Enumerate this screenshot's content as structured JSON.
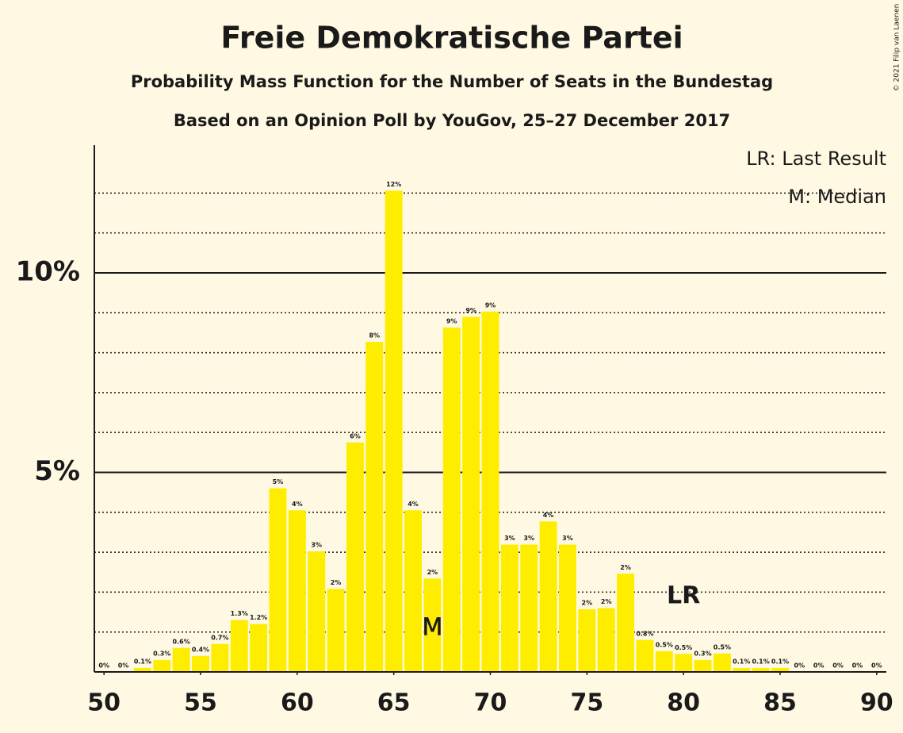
{
  "chart_data": {
    "type": "bar",
    "title": "Freie Demokratische Partei",
    "subtitle": "Probability Mass Function for the Number of Seats in the Bundestag",
    "subtitle2": "Based on an Opinion Poll by YouGov, 25–27 December 2017",
    "copyright": "© 2021 Filip van Laenen",
    "legend": [
      "LR: Last Result",
      "M: Median"
    ],
    "legend_position": "top-right",
    "color": "#ffed00",
    "x": [
      50,
      51,
      52,
      53,
      54,
      55,
      56,
      57,
      58,
      59,
      60,
      61,
      62,
      63,
      64,
      65,
      66,
      67,
      68,
      69,
      70,
      71,
      72,
      73,
      74,
      75,
      76,
      77,
      78,
      79,
      80,
      81,
      82,
      83,
      84,
      85,
      86,
      87,
      88,
      89,
      90
    ],
    "values": [
      0,
      0,
      0.1,
      0.3,
      0.6,
      0.4,
      0.7,
      1.3,
      1.2,
      4.6,
      4.05,
      3.02,
      2.08,
      5.75,
      8.27,
      12.06,
      4.05,
      2.34,
      8.63,
      8.9,
      9.03,
      3.19,
      3.19,
      3.77,
      3.19,
      1.57,
      1.6,
      2.46,
      0.8,
      0.52,
      0.45,
      0.3,
      0.46,
      0.1,
      0.1,
      0.1,
      0,
      0,
      0,
      0,
      0
    ],
    "value_labels": [
      "0%",
      "0%",
      "0.1%",
      "0.3%",
      "0.6%",
      "0.4%",
      "0.7%",
      "1.3%",
      "1.2%",
      "5%",
      "4%",
      "3%",
      "2%",
      "6%",
      "8%",
      "12%",
      "4%",
      "2%",
      "9%",
      "9%",
      "9%",
      "3%",
      "3%",
      "4%",
      "3%",
      "2%",
      "2%",
      "2%",
      "0.8%",
      "0.5%",
      "0.5%",
      "0.3%",
      "0.5%",
      "0.1%",
      "0.1%",
      "0.1%",
      "0%",
      "0%",
      "0%",
      "0%",
      "0%"
    ],
    "median": 67,
    "median_label": "M",
    "last_result": 80,
    "last_result_label": "LR",
    "xlim": [
      49.5,
      90.5
    ],
    "xticks": [
      50,
      55,
      60,
      65,
      70,
      75,
      80,
      85,
      90
    ],
    "ylim": [
      0,
      13.2
    ],
    "yticks": [
      {
        "value": 5,
        "label": "5%"
      },
      {
        "value": 10,
        "label": "10%"
      }
    ],
    "minor_yticks": [
      1,
      2,
      3,
      4,
      6,
      7,
      8,
      9,
      11,
      12
    ],
    "grid": true
  }
}
